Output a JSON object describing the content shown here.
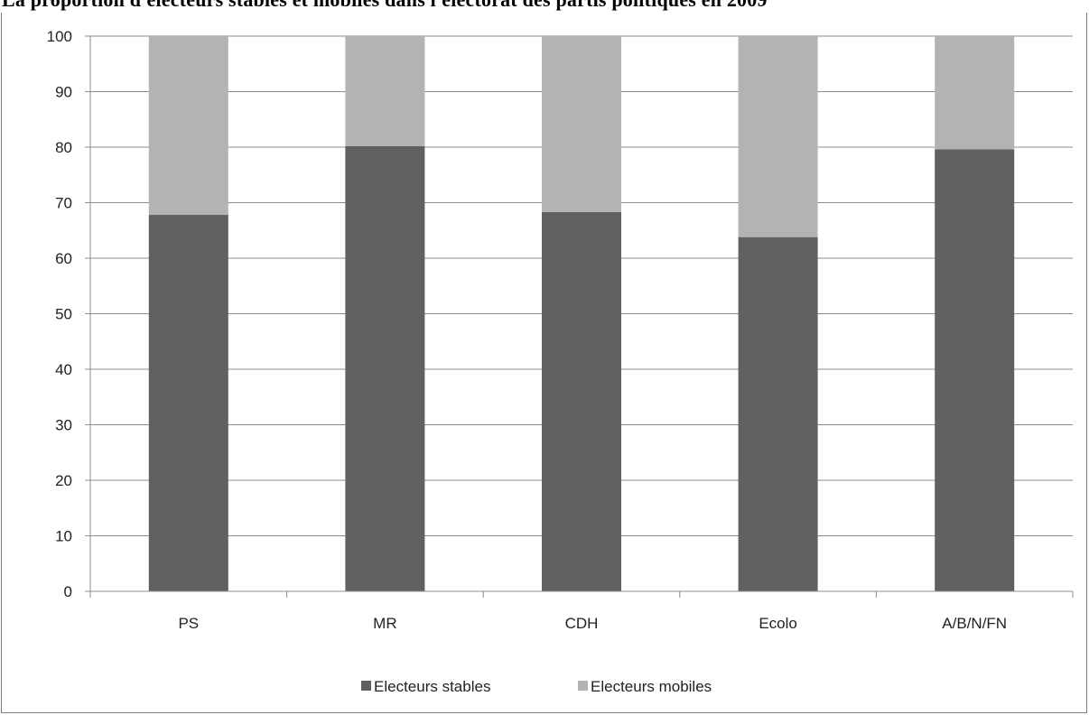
{
  "header": {
    "title": "La proportion d'électeurs stables et mobiles dans l'électorat des partis politiques en 2009"
  },
  "chart_data": {
    "type": "bar",
    "stacked": true,
    "categories": [
      "PS",
      "MR",
      "CDH",
      "Ecolo",
      "A/B/N/FN"
    ],
    "series": [
      {
        "name": "Electeurs stables",
        "color": "#606060",
        "values": [
          67.8,
          80.2,
          68.3,
          63.8,
          79.6
        ]
      },
      {
        "name": "Electeurs mobiles",
        "color": "#b3b3b3",
        "values": [
          32.2,
          19.8,
          31.7,
          36.2,
          20.4
        ]
      }
    ],
    "ylim": [
      0,
      100
    ],
    "yticks": [
      0,
      10,
      20,
      30,
      40,
      50,
      60,
      70,
      80,
      90,
      100
    ],
    "grid": true,
    "legend_position": "bottom"
  }
}
